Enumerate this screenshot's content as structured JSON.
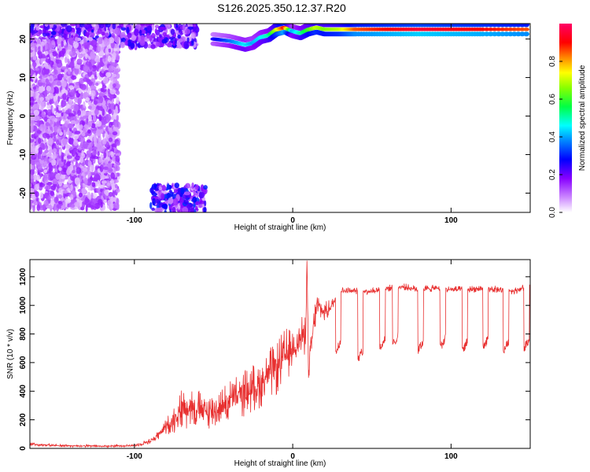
{
  "title": "S126.2025.350.12.37.R20",
  "chart_data": [
    {
      "type": "heatmap",
      "xlabel": "Height of straight line (km)",
      "ylabel": "Frequency (Hz)",
      "xlim": [
        -166,
        150
      ],
      "ylim": [
        -25,
        24
      ],
      "x_ticks": [
        -100,
        0,
        100
      ],
      "y_ticks": [
        -20,
        -10,
        0,
        10,
        20
      ],
      "grid": false,
      "colorbar": {
        "label": "Normalized spectral amplitude",
        "range": [
          0,
          1
        ],
        "ticks": [
          0.0,
          0.2,
          0.4,
          0.6,
          0.8
        ],
        "colormap": [
          "#ffffff",
          "#8800ff",
          "#0000ff",
          "#00ffff",
          "#00ff00",
          "#ffff00",
          "#ff0000",
          "#ff0066"
        ]
      },
      "ridge": {
        "x": [
          -50,
          -40,
          -30,
          -25,
          -20,
          -15,
          -10,
          -5,
          0,
          5,
          10,
          15,
          20,
          30,
          40,
          60,
          80,
          100,
          120,
          150
        ],
        "frequency": [
          20.0,
          19.5,
          18.5,
          19.0,
          20.5,
          21.0,
          22.5,
          23.0,
          22.0,
          21.5,
          22.5,
          23.0,
          22.5,
          22.5,
          22.5,
          22.5,
          22.5,
          22.5,
          22.5,
          22.5
        ],
        "amplitude": [
          0.25,
          0.35,
          0.45,
          0.4,
          0.45,
          0.5,
          0.7,
          0.9,
          0.4,
          0.5,
          0.6,
          0.7,
          0.65,
          0.7,
          0.85,
          0.9,
          0.95,
          0.92,
          0.9,
          0.85
        ]
      },
      "features": [
        {
          "x": [
            -166,
            -60
          ],
          "frequency": [
            18,
            24
          ],
          "amplitude": 0.25
        },
        {
          "x": [
            -166,
            -110
          ],
          "frequency": [
            -24,
            20
          ],
          "amplitude": 0.15
        },
        {
          "x": [
            -90,
            -55
          ],
          "frequency": [
            -25,
            -18
          ],
          "amplitude": 0.3
        }
      ]
    },
    {
      "type": "line",
      "xlabel": "Height of straight line (km)",
      "ylabel": "SNR (10 * v/v)",
      "xlim": [
        -166,
        150
      ],
      "ylim": [
        0,
        1320
      ],
      "x_ticks": [
        -100,
        0,
        100
      ],
      "y_ticks": [
        0,
        200,
        400,
        600,
        800,
        1000,
        1200
      ],
      "grid": false,
      "series": [
        {
          "color": "#e83030",
          "x": [
            -166,
            -150,
            -120,
            -100,
            -90,
            -85,
            -80,
            -75,
            -70,
            -65,
            -60,
            -55,
            -50,
            -45,
            -40,
            -35,
            -30,
            -25,
            -20,
            -15,
            -10,
            -5,
            0,
            2,
            5,
            8,
            9,
            10,
            12,
            15,
            20,
            25,
            27,
            30,
            40,
            50,
            60,
            70,
            80,
            90,
            100,
            110,
            120,
            130,
            140,
            150
          ],
          "values": [
            30,
            20,
            15,
            20,
            50,
            90,
            150,
            200,
            280,
            300,
            280,
            250,
            260,
            290,
            330,
            360,
            390,
            420,
            460,
            520,
            560,
            640,
            700,
            740,
            760,
            800,
            1300,
            500,
            750,
            1000,
            950,
            1000,
            1050,
            1100,
            1100,
            1100,
            1120,
            1130,
            1110,
            1120,
            1110,
            1110,
            1120,
            1110,
            1100,
            1140
          ],
          "spread": [
            25,
            20,
            15,
            20,
            40,
            70,
            120,
            200,
            300,
            320,
            280,
            250,
            250,
            260,
            300,
            320,
            330,
            340,
            350,
            360,
            380,
            400,
            300,
            300,
            300,
            300,
            100,
            200,
            250,
            200,
            150,
            100,
            60,
            50,
            50,
            50,
            50,
            50,
            50,
            50,
            50,
            50,
            50,
            50,
            50,
            50
          ],
          "dip_x": [
            27,
            41,
            55,
            63,
            79,
            93,
            107,
            120,
            133,
            146
          ],
          "dip_value": [
            680,
            620,
            700,
            720,
            680,
            700,
            680,
            700,
            680,
            700
          ]
        }
      ]
    }
  ]
}
